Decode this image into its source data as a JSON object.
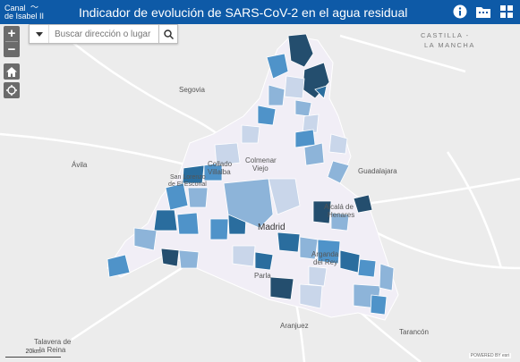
{
  "header": {
    "logo_line1": "Canal",
    "logo_line2": "de Isabel II",
    "title": "Indicador de evolución de SARS-CoV-2 en el agua residual",
    "icons": [
      "info-icon",
      "folder-icon",
      "grid-icon"
    ]
  },
  "search": {
    "placeholder": "Buscar dirección o lugar"
  },
  "controls": {
    "zoom_in": "+",
    "zoom_out": "−"
  },
  "map_labels": {
    "castilla1": "CASTILLA -",
    "castilla2": "LA MANCHA",
    "segovia": "Segovia",
    "avila": "Ávila",
    "guadalajara": "Guadalajara",
    "colmenar1": "Colmenar",
    "colmenar2": "Viejo",
    "collado1": "Collado",
    "collado2": "Villalba",
    "escorial1": "San Lorenzo",
    "escorial2": "de El Escorial",
    "madrid": "Madrid",
    "alcala1": "Alcalá de",
    "alcala2": "Henares",
    "arganda1": "Arganda",
    "arganda2": "del Rey",
    "parla": "Parla",
    "aranjuez": "Aranjuez",
    "tarancon": "Tarancón",
    "talavera1": "Talavera de",
    "talavera2": "la Reina",
    "scale": "20km",
    "attribution": "POWERED BY esri"
  },
  "colors": {
    "header": "#0e5aa7",
    "level1": "#f3eef7",
    "level2": "#c9d6ea",
    "level3": "#8db4d9",
    "level4": "#4f93c9",
    "level5": "#2a6d9e",
    "level6": "#244e6e"
  }
}
